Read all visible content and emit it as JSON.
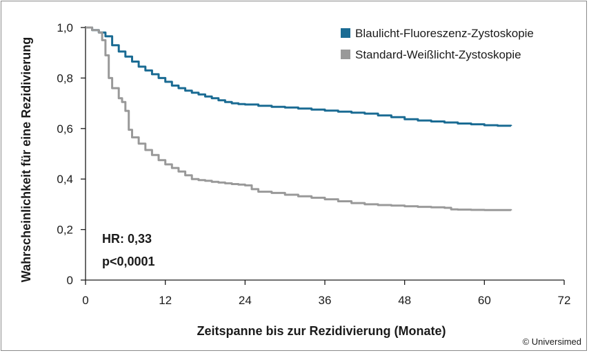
{
  "chart_data": {
    "type": "line",
    "xlabel": "Zeitspanne bis zur Rezidivierung (Monate)",
    "ylabel": "Wahrscheinlichkeit für eine Rezidivierung",
    "xlim": [
      0,
      72
    ],
    "ylim": [
      0,
      1.0
    ],
    "x_ticks": [
      0,
      12,
      24,
      36,
      48,
      60,
      72
    ],
    "x_tick_labels": [
      "0",
      "12",
      "24",
      "36",
      "48",
      "60",
      "72"
    ],
    "y_ticks": [
      0,
      0.2,
      0.4,
      0.6,
      0.8,
      1.0
    ],
    "y_tick_labels": [
      "0",
      "0,2",
      "0,4",
      "0,6",
      "0,8",
      "1,0"
    ],
    "grid": false,
    "legend_position": "top-right",
    "series": [
      {
        "name": "Blaulicht-Fluoreszenz-Zystoskopie",
        "color": "#1a6b93",
        "x": [
          0,
          1,
          2,
          3,
          4,
          5,
          6,
          7,
          8,
          9,
          10,
          11,
          12,
          13,
          14,
          15,
          16,
          17,
          18,
          19,
          20,
          21,
          22,
          23,
          24,
          26,
          28,
          30,
          32,
          34,
          36,
          38,
          40,
          42,
          44,
          46,
          48,
          50,
          52,
          54,
          56,
          58,
          60,
          62,
          64
        ],
        "y": [
          1.0,
          0.99,
          0.98,
          0.965,
          0.93,
          0.905,
          0.885,
          0.865,
          0.845,
          0.83,
          0.815,
          0.8,
          0.785,
          0.77,
          0.76,
          0.75,
          0.742,
          0.735,
          0.727,
          0.72,
          0.712,
          0.705,
          0.7,
          0.697,
          0.695,
          0.69,
          0.686,
          0.683,
          0.679,
          0.675,
          0.671,
          0.667,
          0.663,
          0.659,
          0.652,
          0.645,
          0.637,
          0.632,
          0.628,
          0.624,
          0.62,
          0.617,
          0.613,
          0.611,
          0.61
        ]
      },
      {
        "name": "Standard-Weißlicht-Zystoskopie",
        "color": "#999999",
        "x": [
          0,
          1,
          2,
          2.5,
          3,
          3.5,
          4,
          5,
          5.5,
          6,
          6.5,
          7,
          8,
          9,
          10,
          11,
          12,
          13,
          14,
          15,
          16,
          17,
          18,
          19,
          20,
          21,
          22,
          23,
          24,
          25,
          26,
          28,
          30,
          32,
          34,
          36,
          38,
          40,
          42,
          44,
          46,
          48,
          50,
          52,
          54,
          55,
          56,
          58,
          60,
          62,
          64
        ],
        "y": [
          1.0,
          0.99,
          0.98,
          0.95,
          0.89,
          0.8,
          0.76,
          0.72,
          0.705,
          0.67,
          0.595,
          0.565,
          0.54,
          0.515,
          0.495,
          0.475,
          0.458,
          0.444,
          0.43,
          0.415,
          0.4,
          0.396,
          0.393,
          0.389,
          0.386,
          0.383,
          0.38,
          0.378,
          0.375,
          0.36,
          0.35,
          0.345,
          0.338,
          0.332,
          0.326,
          0.32,
          0.312,
          0.305,
          0.3,
          0.297,
          0.295,
          0.292,
          0.29,
          0.288,
          0.286,
          0.28,
          0.279,
          0.278,
          0.277,
          0.277,
          0.276
        ]
      }
    ],
    "annotations": [
      "HR: 0,33",
      "p<0,0001"
    ]
  },
  "credit": "© Universimed"
}
